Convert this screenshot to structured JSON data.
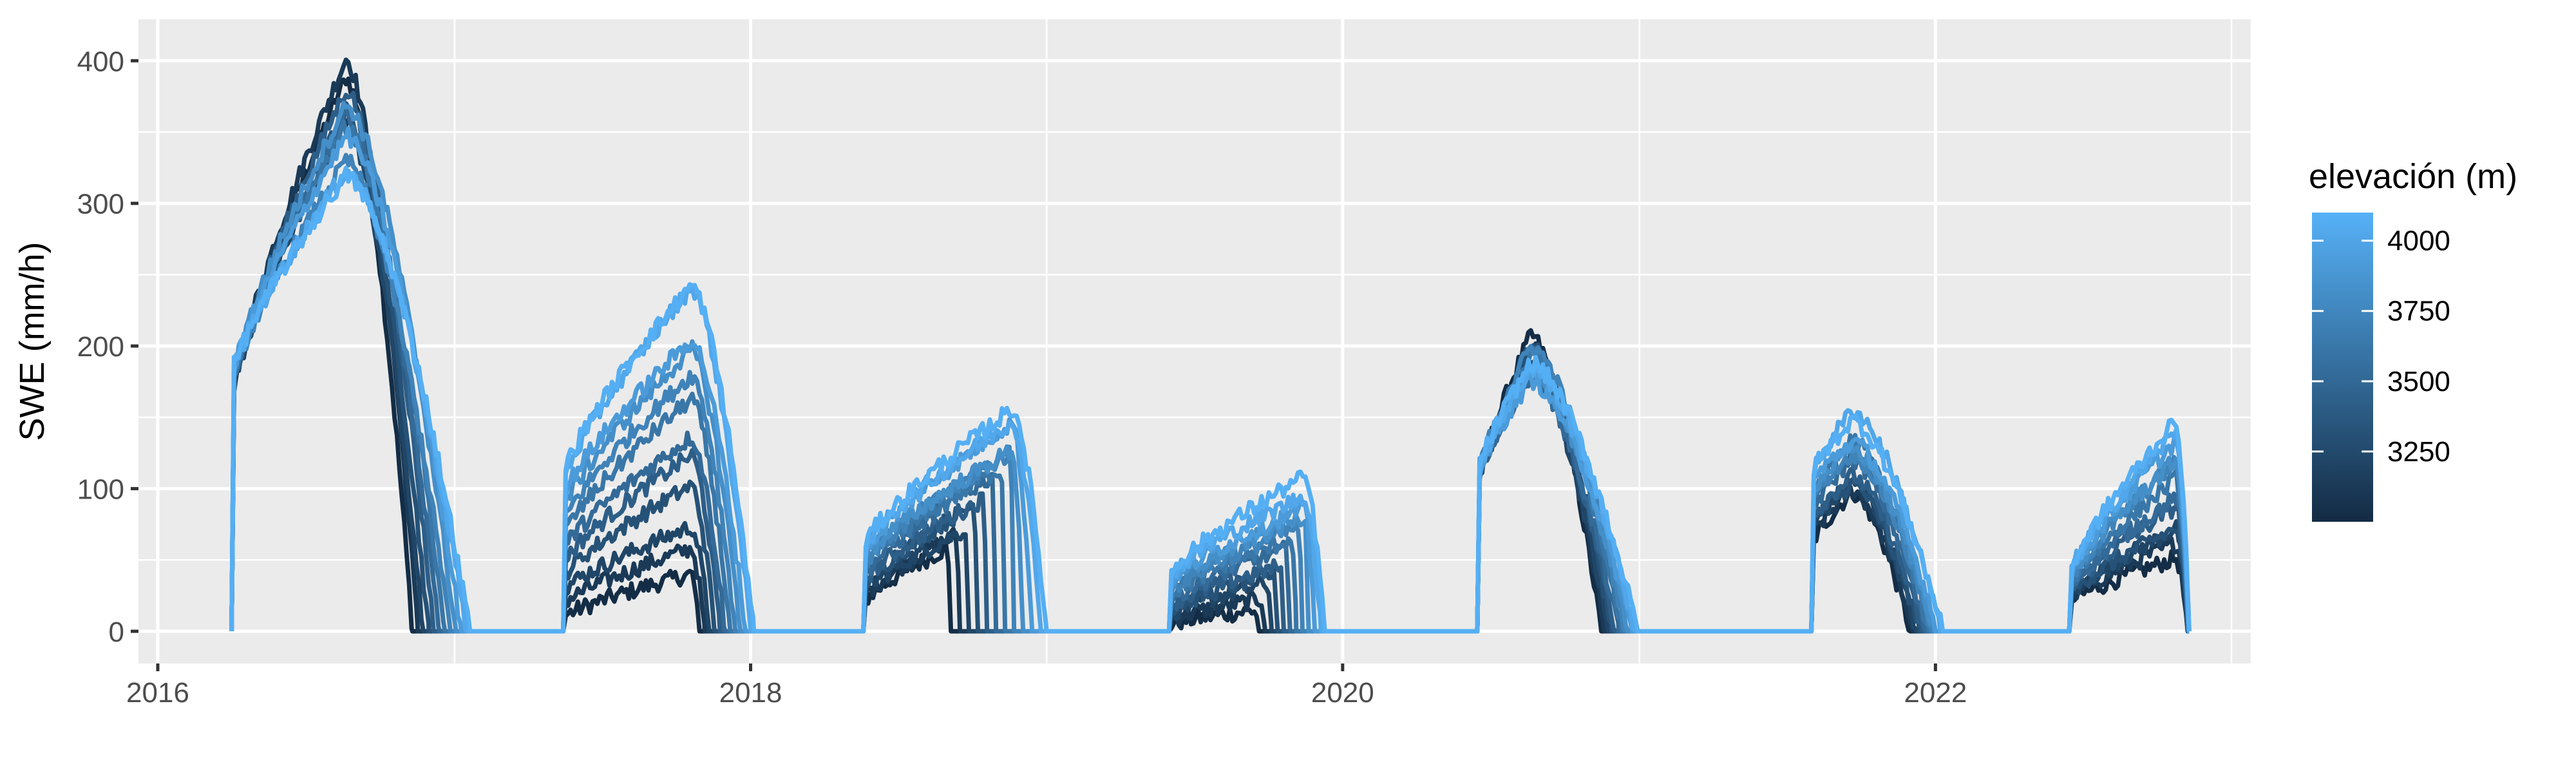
{
  "chart_data": {
    "type": "line",
    "title": "",
    "xlabel": "",
    "ylabel": "SWE (mm/h)",
    "x_axis": {
      "kind": "date",
      "range": [
        "2016-01-01",
        "2023-01-01"
      ],
      "ticks": [
        "2016",
        "2018",
        "2020",
        "2022"
      ]
    },
    "y_axis": {
      "range": [
        0,
        420
      ],
      "ticks": [
        0,
        100,
        200,
        300,
        400
      ]
    },
    "grid": true,
    "panel_background": "#ebebeb",
    "legend": {
      "title": "elevación (m)",
      "placement": "right",
      "type": "colorbar",
      "range": [
        3000,
        4100
      ],
      "ticks": [
        3250,
        3500,
        3750,
        4000
      ],
      "color_low": "#132b43",
      "color_high": "#56b1f7"
    },
    "elevations": [
      3020,
      3120,
      3220,
      3320,
      3420,
      3520,
      3620,
      3720,
      3820,
      3920,
      4020,
      4080
    ],
    "seasons": [
      {
        "start": "2016-04-01",
        "peak_date": "2016-08-20",
        "peak_low": 380,
        "peak_high": 340,
        "melt_end_low": "2016-11-10",
        "melt_end_high": "2017-01-20",
        "accum_start_low": 160,
        "accum_start_high": 180
      },
      {
        "start": "2017-05-15",
        "peak_date": "2017-10-20",
        "peak_low": 40,
        "peak_high": 245,
        "melt_end_low": "2017-10-30",
        "melt_end_high": "2018-01-05",
        "accum_start_low": 10,
        "accum_start_high": 110
      },
      {
        "start": "2018-05-20",
        "peak_date": "2018-11-20",
        "peak_low": 55,
        "peak_high": 160,
        "melt_end_low": "2018-09-05",
        "melt_end_high": "2019-01-01",
        "accum_start_low": 20,
        "accum_start_high": 60
      },
      {
        "start": "2019-06-01",
        "peak_date": "2019-11-15",
        "peak_low": 15,
        "peak_high": 105,
        "melt_end_low": "2019-09-20",
        "melt_end_high": "2019-12-10",
        "accum_start_low": 5,
        "accum_start_high": 40
      },
      {
        "start": "2020-06-15",
        "peak_date": "2020-08-20",
        "peak_low": 205,
        "peak_high": 180,
        "melt_end_low": "2020-11-15",
        "melt_end_high": "2020-12-30",
        "accum_start_low": 100,
        "accum_start_high": 110
      },
      {
        "start": "2021-08-01",
        "peak_date": "2021-09-20",
        "peak_low": 95,
        "peak_high": 150,
        "melt_end_low": "2021-12-01",
        "melt_end_high": "2022-01-10",
        "accum_start_low": 60,
        "accum_start_high": 110
      },
      {
        "start": "2022-06-15",
        "peak_date": "2022-10-25",
        "peak_low": 50,
        "peak_high": 145,
        "melt_end_low": "2022-11-08",
        "melt_end_high": "2022-11-10",
        "accum_start_low": 20,
        "accum_start_high": 40
      }
    ],
    "series_end": "2022-11-10",
    "series_start": "2016-04-01"
  }
}
